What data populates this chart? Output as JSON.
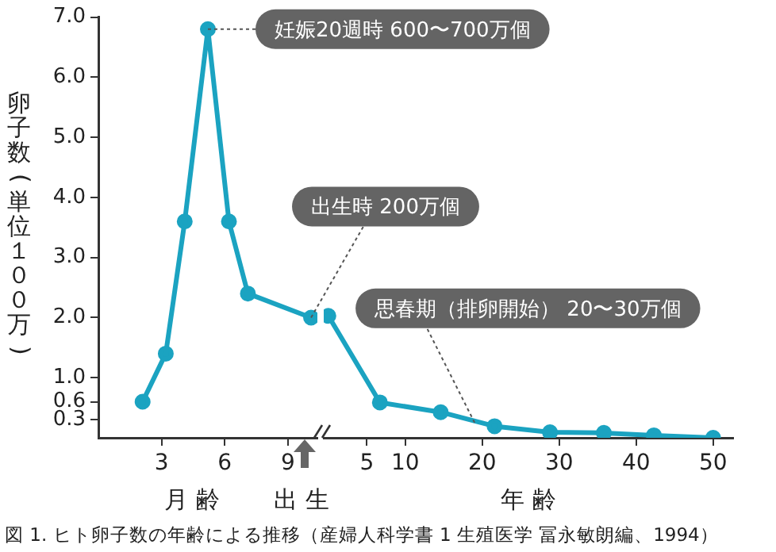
{
  "chart_data": [
    {
      "type": "line",
      "ylabel": "卵子数(単位１００万)",
      "xlabel": "月 齢",
      "x": [
        2.1,
        3.2,
        4.1,
        5.2,
        6.2,
        7.1,
        10.1
      ],
      "series": [
        {
          "color": "#1ba3c1",
          "values": [
            0.6,
            1.4,
            3.6,
            6.8,
            3.6,
            2.4,
            2.0
          ]
        }
      ],
      "xlim": [
        0,
        10.4
      ],
      "xticks": [
        3,
        6,
        9
      ],
      "ylim": [
        0,
        7
      ],
      "yticks": [
        0.3,
        0.6,
        {
          "value": 1,
          "label": "1.0"
        },
        {
          "value": 2,
          "label": "2.0"
        },
        {
          "value": 3,
          "label": "3.0"
        },
        {
          "value": 4,
          "label": "4.0"
        },
        {
          "value": 5,
          "label": "5.0"
        },
        {
          "value": 6,
          "label": "6.0"
        },
        {
          "value": 7,
          "label": "7.0"
        }
      ],
      "grid": false,
      "legend": false,
      "marker": "circle",
      "line_style": "solid",
      "annotations": [
        {
          "text": "妊娠20週時 600〜700万個",
          "x": 5.2,
          "y": 6.8
        },
        {
          "text": "出生時 200万個",
          "x": 10.1,
          "y": 2.0
        },
        "出 生",
        "図 1. ヒト卵子数の年齢による推移（産婦人科学書 1 生殖医学 冨永敏朗編、1994）"
      ]
    },
    {
      "type": "line",
      "xlabel": "年 齢",
      "x": [
        0,
        6.7,
        14.6,
        21.6,
        28.8,
        35.8,
        42.3,
        50
      ],
      "series": [
        {
          "color": "#1ba3c1",
          "values": [
            2.0,
            0.58,
            0.42,
            0.19,
            0.09,
            0.08,
            0.04,
            0
          ]
        }
      ],
      "xlim": [
        -0.6,
        52.6
      ],
      "xticks": [
        5,
        10,
        20,
        30,
        40,
        50
      ],
      "ylim": [
        0,
        7
      ],
      "tick_labels": "x",
      "grid": false,
      "legend": false,
      "marker": "circle",
      "line_style": "solid",
      "annotations": [
        {
          "text": "思春期（排卵開始） 20〜30万個",
          "x": 19,
          "y": 0.25
        }
      ]
    }
  ]
}
